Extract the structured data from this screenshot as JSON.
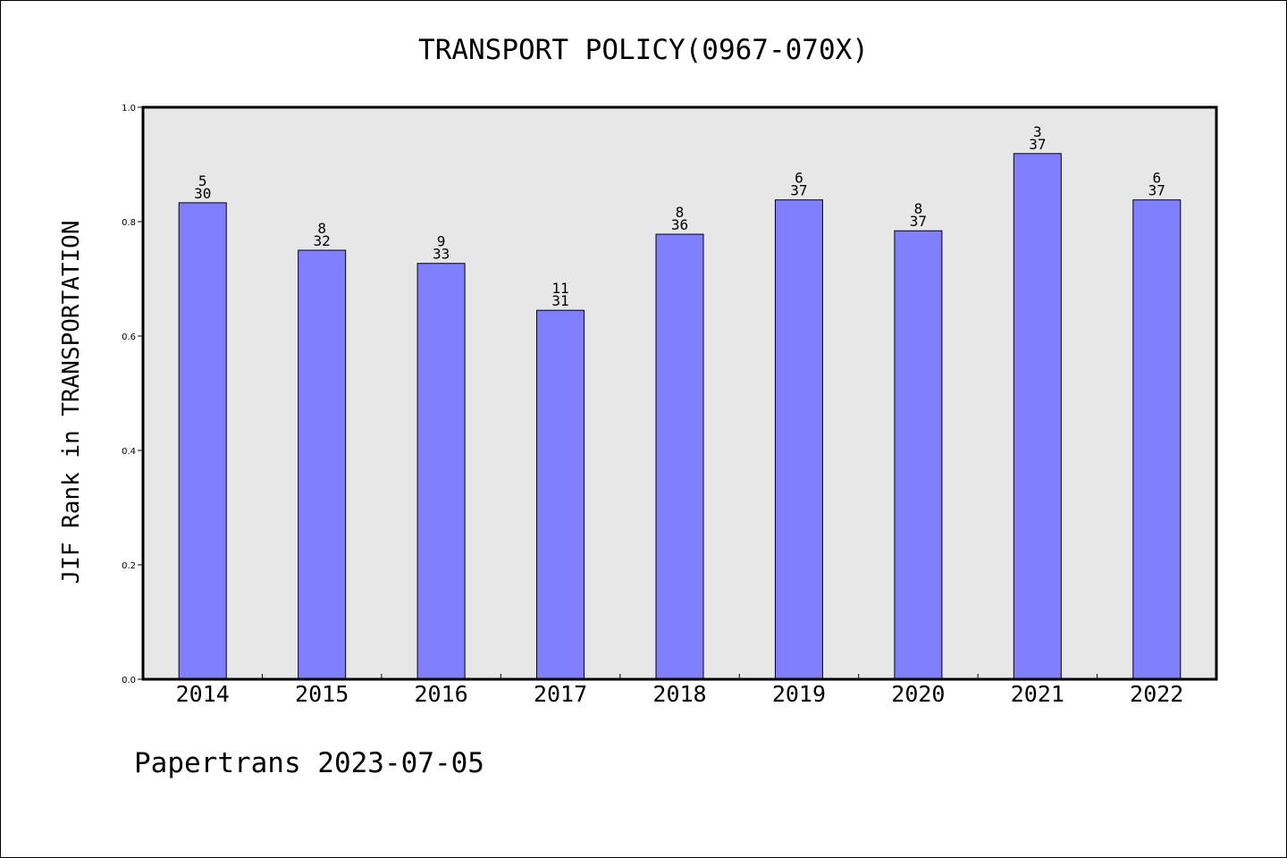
{
  "chart_data": {
    "type": "bar",
    "title": "TRANSPORT POLICY(0967-070X)",
    "ylabel": "JIF Rank in TRANSPORTATION",
    "xlabel": "",
    "categories": [
      "2014",
      "2015",
      "2016",
      "2017",
      "2018",
      "2019",
      "2020",
      "2021",
      "2022"
    ],
    "values": [
      0.833,
      0.75,
      0.727,
      0.645,
      0.778,
      0.838,
      0.784,
      0.919,
      0.838
    ],
    "rank": [
      "5",
      "8",
      "9",
      "11",
      "8",
      "6",
      "8",
      "3",
      "6"
    ],
    "total": [
      "30",
      "32",
      "33",
      "31",
      "36",
      "37",
      "37",
      "37",
      "37"
    ],
    "ylim": [
      0,
      1.0
    ],
    "yticks": [
      "0.0",
      "0.2",
      "0.4",
      "0.6",
      "0.8",
      "1.0"
    ],
    "grid": false,
    "bar_color": "#8080ff",
    "plot_background": "#e7e7e7"
  },
  "footer": {
    "text": "Papertrans 2023-07-05"
  }
}
